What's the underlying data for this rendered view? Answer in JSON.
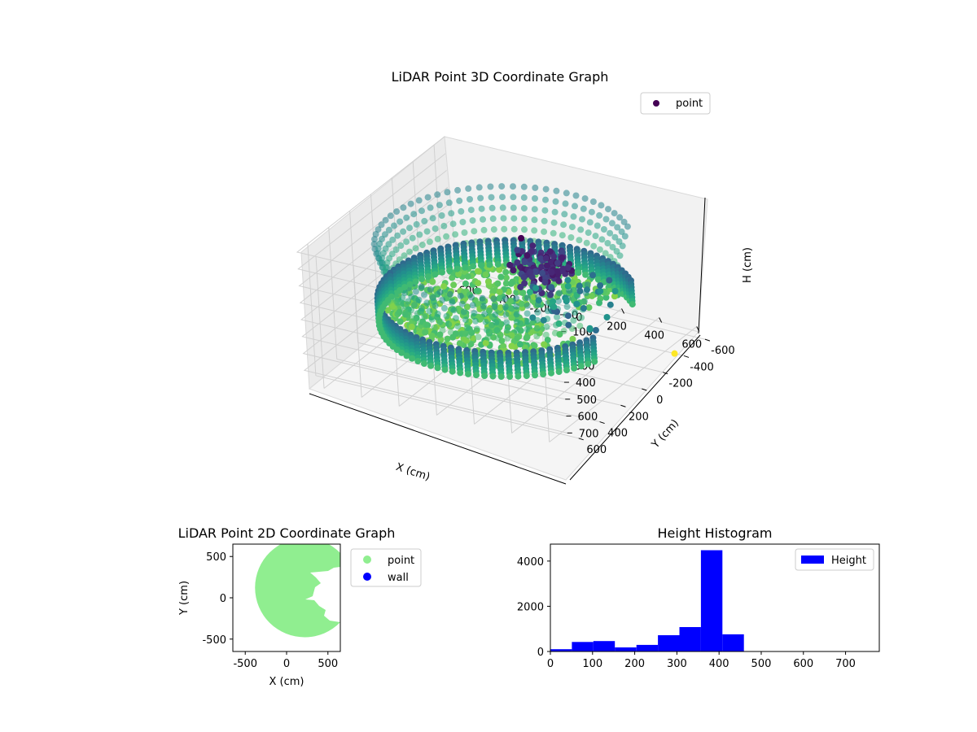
{
  "chart_data": [
    {
      "type": "scatter3d",
      "title": "LiDAR Point 3D Coordinate Graph",
      "xlabel": "X (cm)",
      "ylabel": "Y (cm)",
      "zlabel": "H (cm)",
      "xlim": [
        -700,
        700
      ],
      "ylim": [
        -700,
        700
      ],
      "zlim": [
        0,
        780
      ],
      "xticks": [
        "-600",
        "-400",
        "-200",
        "0",
        "200",
        "400",
        "600"
      ],
      "yticks": [
        "-600",
        "-400",
        "-200",
        "0",
        "200",
        "400",
        "600"
      ],
      "zticks": [
        "0",
        "100",
        "200",
        "300",
        "400",
        "500",
        "600",
        "700"
      ],
      "legend": {
        "label": "point",
        "placement": "top-right"
      },
      "colormap": "viridis",
      "shape": "partial disc of radius ~600 cm with an open wedge toward +X",
      "colors": {
        "low": "#440154",
        "mid": "#21918c",
        "high": "#fde725"
      }
    },
    {
      "type": "scatter",
      "title": "LiDAR Point 2D Coordinate Graph",
      "xlabel": "X (cm)",
      "ylabel": "Y (cm)",
      "xlim": [
        -650,
        650
      ],
      "ylim": [
        -650,
        650
      ],
      "xticks": [
        "-500",
        "0",
        "500"
      ],
      "yticks": [
        "500",
        "0",
        "-500"
      ],
      "series": [
        {
          "name": "point",
          "color": "#90ee90"
        },
        {
          "name": "wall",
          "color": "#0000ff"
        }
      ]
    },
    {
      "type": "bar",
      "title": "Height Histogram",
      "xlabel": "",
      "ylabel": "",
      "legend": "Height",
      "color": "#0000ff",
      "bin_edges": [
        0,
        51,
        102,
        153,
        204,
        255,
        306,
        357,
        408,
        459,
        510,
        561,
        612,
        663,
        714,
        765
      ],
      "values": [
        100,
        420,
        460,
        180,
        290,
        720,
        1080,
        4480,
        760,
        0,
        0,
        0,
        0,
        0,
        0
      ],
      "xlim": [
        0,
        780
      ],
      "ylim": [
        0,
        4750
      ],
      "xticks": [
        "0",
        "100",
        "200",
        "300",
        "400",
        "500",
        "600",
        "700"
      ],
      "yticks": [
        "0",
        "2000",
        "4000"
      ]
    }
  ]
}
